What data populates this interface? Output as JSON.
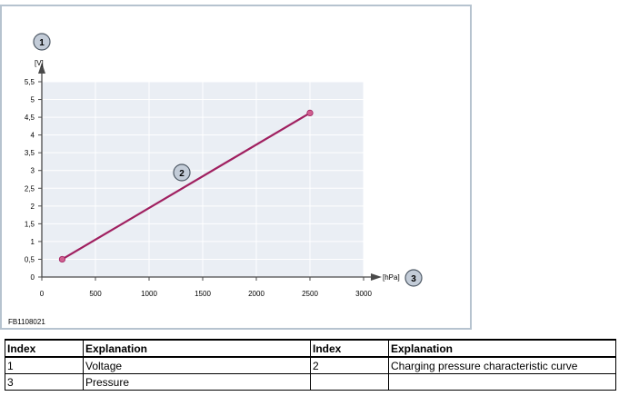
{
  "figure_code": "FB1108021",
  "chart_data": {
    "type": "line",
    "x_label_index": "3",
    "x_unit": "[hPa]",
    "y_label_index": "1",
    "y_unit": "[V]",
    "curve_index": "2",
    "xlim": [
      0,
      3000
    ],
    "ylim": [
      0,
      5.5
    ],
    "x_ticks": [
      "0",
      "500",
      "1000",
      "1500",
      "2000",
      "2500",
      "3000"
    ],
    "y_ticks": [
      "0",
      "0,5",
      "1",
      "1,5",
      "2",
      "2,5",
      "3",
      "3,5",
      "4",
      "4,5",
      "5",
      "5,5"
    ],
    "grid": true,
    "series": [
      {
        "x": [
          190,
          2500
        ],
        "y": [
          0.5,
          4.62
        ],
        "color": "#a02060"
      }
    ]
  },
  "legend_table": {
    "headers": [
      "Index",
      "Explanation",
      "Index",
      "Explanation"
    ],
    "rows": [
      [
        "1",
        "Voltage",
        "2",
        "Charging pressure characteristic curve"
      ],
      [
        "3",
        "Pressure",
        "",
        ""
      ]
    ]
  }
}
